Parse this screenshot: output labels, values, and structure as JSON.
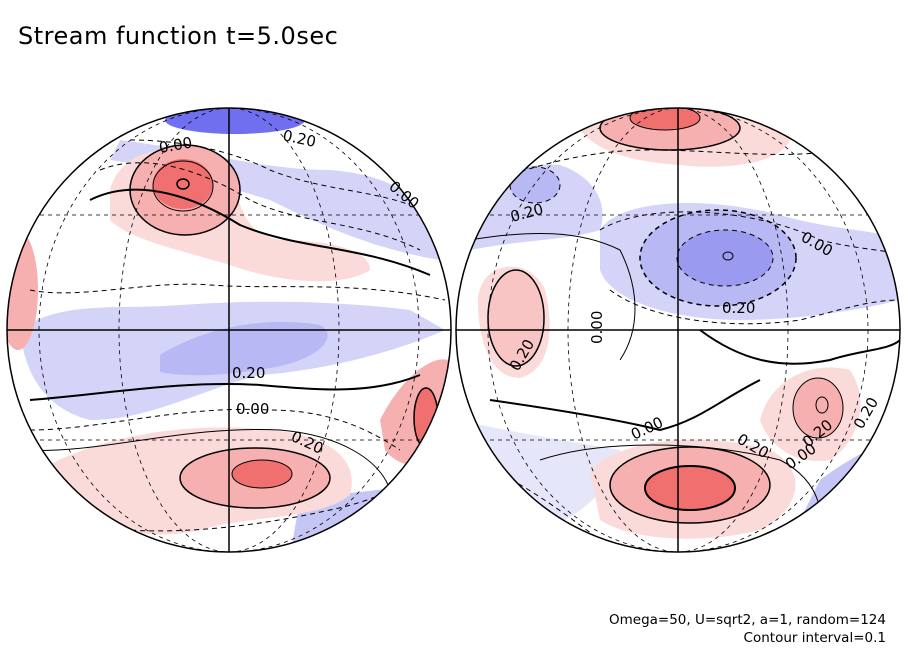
{
  "title": "Stream function t=5.0sec",
  "footer": {
    "params": "Omega=50, U=sqrt2, a=1, random=124",
    "interval": "Contour interval=0.1"
  },
  "colors": {
    "positive": "#f07070",
    "negative": "#6f6ff0",
    "background": "#ffffff",
    "line": "#000000"
  },
  "hemispheres": [
    {
      "labels": [
        {
          "text": "0.20"
        },
        {
          "text": "0.00"
        },
        {
          "text": "0.00"
        },
        {
          "text": "0.20"
        },
        {
          "text": "0.00"
        },
        {
          "text": "0.20"
        }
      ]
    },
    {
      "labels": [
        {
          "text": "0.20"
        },
        {
          "text": "0.00"
        },
        {
          "text": "0.20"
        },
        {
          "text": "0.00"
        },
        {
          "text": "0.20"
        },
        {
          "text": "0.00"
        },
        {
          "text": "0.20"
        },
        {
          "text": "0.00"
        },
        {
          "text": "0.20"
        },
        {
          "text": "0.20"
        }
      ]
    }
  ]
}
